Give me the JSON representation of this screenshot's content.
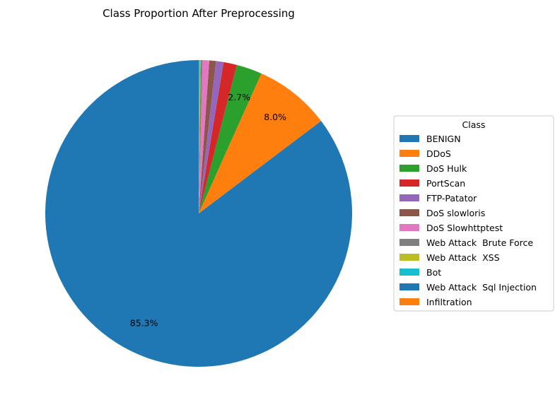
{
  "chart_data": {
    "type": "pie",
    "title": "Class Proportion After Preprocessing",
    "legend_title": "Class",
    "legend_position": "right",
    "start_angle_deg": 90,
    "direction": "counterclockwise",
    "slices": [
      {
        "label": "BENIGN",
        "value": 85.3,
        "color": "#1f77b4",
        "pct_label": "85.3%"
      },
      {
        "label": "DDoS",
        "value": 8.0,
        "color": "#ff7f0e",
        "pct_label": "8.0%"
      },
      {
        "label": "DoS Hulk",
        "value": 2.7,
        "color": "#2ca02c",
        "pct_label": "2.7%"
      },
      {
        "label": "PortScan",
        "value": 1.4,
        "color": "#d62728",
        "pct_label": ""
      },
      {
        "label": "FTP-Patator",
        "value": 0.8,
        "color": "#9467bd",
        "pct_label": ""
      },
      {
        "label": "DoS slowloris",
        "value": 0.7,
        "color": "#8c564b",
        "pct_label": ""
      },
      {
        "label": "DoS Slowhttptest",
        "value": 0.7,
        "color": "#e377c2",
        "pct_label": ""
      },
      {
        "label": "Web Attack  Brute Force",
        "value": 0.2,
        "color": "#7f7f7f",
        "pct_label": ""
      },
      {
        "label": "Web Attack  XSS",
        "value": 0.08,
        "color": "#bcbd22",
        "pct_label": ""
      },
      {
        "label": "Bot",
        "value": 0.1,
        "color": "#17becf",
        "pct_label": ""
      },
      {
        "label": "Web Attack  Sql Injection",
        "value": 0.01,
        "color": "#1f77b4",
        "pct_label": ""
      },
      {
        "label": "Infiltration",
        "value": 0.01,
        "color": "#ff7f0e",
        "pct_label": ""
      }
    ]
  }
}
